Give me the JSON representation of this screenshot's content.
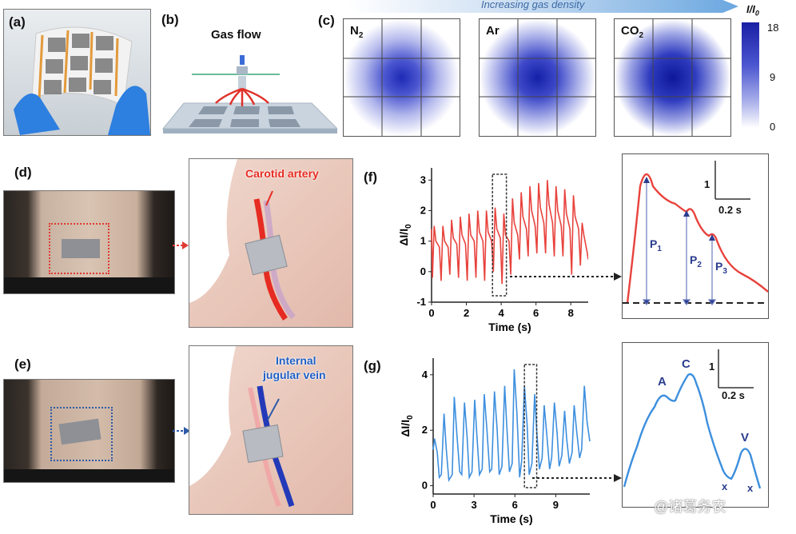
{
  "panels": {
    "a": "(a)",
    "b": "(b)",
    "c": "(c)",
    "d": "(d)",
    "e": "(e)",
    "f": "(f)",
    "g": "(g)"
  },
  "panel_b": {
    "title": "Gas flow"
  },
  "panel_c": {
    "banner": "Increasing gas density",
    "maps": [
      {
        "gas": "N",
        "sub": "2"
      },
      {
        "gas": "Ar",
        "sub": ""
      },
      {
        "gas": "CO",
        "sub": "2"
      }
    ],
    "colorbar": {
      "title": "I/I",
      "title_sub": "0",
      "max": "18",
      "mid": "9",
      "min": "0"
    }
  },
  "panel_d": {
    "vessel_label": "Carotid artery"
  },
  "panel_e": {
    "vessel_label_1": "Internal",
    "vessel_label_2": "jugular vein"
  },
  "panel_f_zoom": {
    "scale_y": "1",
    "scale_x": "0.2 s",
    "p1": "P",
    "p2": "P",
    "p3": "P",
    "sub1": "1",
    "sub2": "2",
    "sub3": "3"
  },
  "panel_g_zoom": {
    "scale_y": "1",
    "scale_x": "0.2 s",
    "a": "A",
    "c": "C",
    "v": "V",
    "x1": "x",
    "x2": "x"
  },
  "watermark": "@诸葛务农",
  "chart_data": [
    {
      "id": "f",
      "type": "line",
      "xlabel": "Time (s)",
      "ylabel": "ΔI/I",
      "ylabel_sub": "0",
      "color": "#e8423c",
      "xlim": [
        0,
        9
      ],
      "ylim": [
        -1,
        3.4
      ],
      "xticks": [
        0,
        2,
        4,
        6,
        8
      ],
      "yticks": [
        -1,
        0,
        1,
        2,
        3
      ],
      "series": [
        {
          "x": [
            0.0,
            0.05,
            0.15,
            0.25,
            0.45,
            0.55,
            0.65,
            0.75,
            0.95,
            1.05,
            1.15,
            1.25,
            1.45,
            1.55,
            1.65,
            1.75,
            1.95,
            2.05,
            2.15,
            2.25,
            2.45,
            2.55,
            2.65,
            2.75,
            2.95,
            3.05,
            3.15,
            3.25,
            3.45,
            3.55,
            3.65,
            3.75,
            3.95,
            4.05,
            4.15,
            4.25,
            4.45,
            4.55,
            4.65,
            4.75,
            4.95,
            5.05,
            5.15,
            5.25,
            5.45,
            5.55,
            5.65,
            5.75,
            5.95,
            6.05,
            6.15,
            6.25,
            6.45,
            6.55,
            6.65,
            6.75,
            6.95,
            7.05,
            7.15,
            7.25,
            7.45,
            7.55,
            7.65,
            7.75,
            7.95,
            8.05,
            8.15,
            8.25,
            8.45,
            8.55,
            8.65,
            8.75,
            8.95,
            9.0
          ],
          "y": [
            1.4,
            -0.2,
            1.5,
            1.0,
            0.8,
            -0.3,
            1.5,
            1.0,
            0.8,
            -0.1,
            1.7,
            1.1,
            0.9,
            -0.2,
            1.8,
            1.2,
            0.9,
            -0.3,
            1.9,
            1.2,
            1.0,
            -0.2,
            2.0,
            1.3,
            1.0,
            -0.3,
            2.0,
            1.3,
            1.0,
            0.0,
            2.1,
            1.4,
            1.1,
            -0.4,
            1.9,
            1.2,
            1.0,
            -0.1,
            2.4,
            1.6,
            1.2,
            0.4,
            2.6,
            1.8,
            1.4,
            0.5,
            2.8,
            2.0,
            1.5,
            0.6,
            2.9,
            2.1,
            1.6,
            0.6,
            3.0,
            2.2,
            1.6,
            0.5,
            2.8,
            2.0,
            1.5,
            0.5,
            2.7,
            1.9,
            1.4,
            -0.1,
            2.5,
            1.8,
            1.4,
            0.2,
            1.6,
            1.2,
            0.6,
            0.4
          ]
        }
      ],
      "highlight_x": [
        3.5,
        4.3
      ]
    },
    {
      "id": "g",
      "type": "line",
      "xlabel": "Time (s)",
      "ylabel": "ΔI/I",
      "ylabel_sub": "0",
      "color": "#3d8fde",
      "xlim": [
        0,
        11.5
      ],
      "ylim": [
        -0.3,
        4.6
      ],
      "xticks": [
        0,
        3,
        6,
        9
      ],
      "yticks": [
        0,
        2,
        4
      ],
      "series": [
        {
          "x": [
            0.0,
            0.1,
            0.3,
            0.45,
            0.6,
            0.8,
            0.95,
            1.15,
            1.4,
            1.55,
            1.75,
            1.95,
            2.1,
            2.3,
            2.5,
            2.65,
            2.85,
            3.05,
            3.2,
            3.4,
            3.6,
            3.75,
            3.95,
            4.15,
            4.3,
            4.5,
            4.7,
            4.85,
            5.05,
            5.25,
            5.4,
            5.6,
            5.8,
            5.95,
            6.15,
            6.35,
            6.5,
            6.7,
            6.9,
            7.05,
            7.25,
            7.45,
            7.6,
            7.8,
            8.0,
            8.15,
            8.35,
            8.55,
            8.7,
            8.9,
            9.1,
            9.25,
            9.45,
            9.65,
            9.8,
            10.0,
            10.2,
            10.35,
            10.55,
            10.75,
            10.9,
            11.1,
            11.3,
            11.5
          ],
          "y": [
            1.3,
            1.7,
            1.2,
            0.3,
            0.4,
            2.6,
            1.4,
            0.2,
            0.4,
            3.2,
            1.8,
            0.5,
            0.4,
            3.0,
            1.7,
            0.3,
            0.5,
            3.1,
            1.9,
            0.4,
            0.6,
            3.3,
            2.0,
            0.5,
            0.6,
            3.4,
            2.0,
            0.4,
            0.7,
            3.6,
            2.2,
            0.5,
            0.8,
            4.2,
            2.6,
            0.3,
            0.9,
            3.6,
            2.2,
            0.4,
            0.8,
            3.3,
            2.0,
            0.6,
            1.0,
            2.9,
            1.8,
            0.6,
            1.0,
            3.0,
            1.9,
            0.7,
            1.1,
            2.7,
            1.7,
            0.8,
            1.2,
            2.9,
            1.9,
            1.0,
            1.3,
            3.6,
            2.3,
            1.6
          ]
        }
      ],
      "highlight_x": [
        6.7,
        7.6
      ]
    }
  ]
}
